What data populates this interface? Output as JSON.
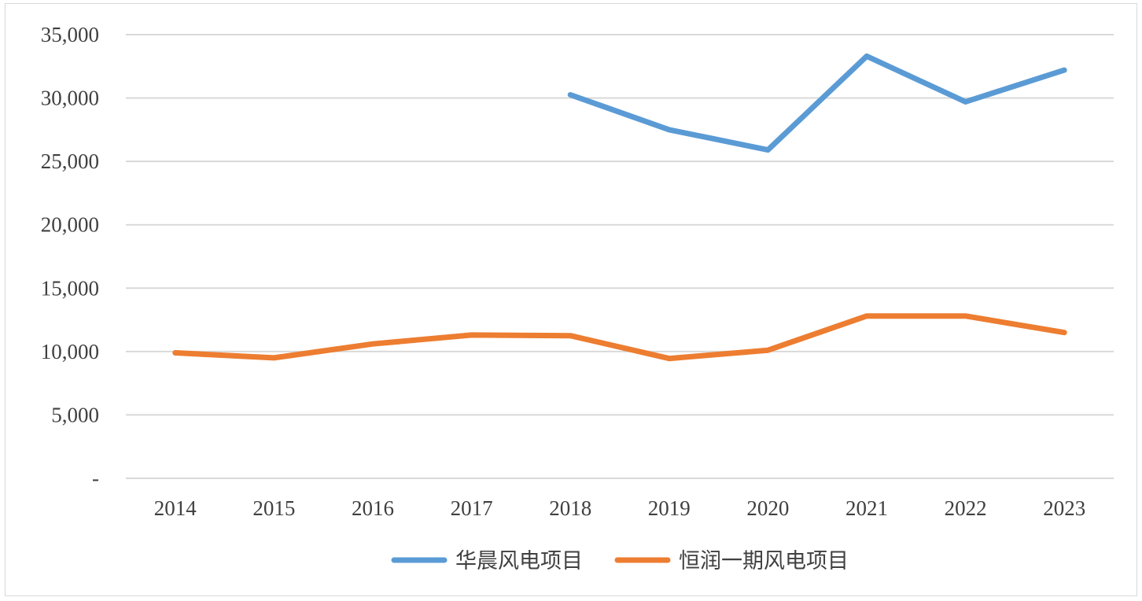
{
  "chart_data": {
    "type": "line",
    "categories": [
      "2014",
      "2015",
      "2016",
      "2017",
      "2018",
      "2019",
      "2020",
      "2021",
      "2022",
      "2023"
    ],
    "ylim": [
      0,
      35000
    ],
    "y_ticks": [
      0,
      5000,
      10000,
      15000,
      20000,
      25000,
      30000,
      35000
    ],
    "y_tick_labels": [
      "-",
      "5,000",
      "10,000",
      "15,000",
      "20,000",
      "25,000",
      "30,000",
      "35,000"
    ],
    "grid": true,
    "legend_position": "bottom",
    "series": [
      {
        "name": "华晨风电项目",
        "color": "#5b9bd5",
        "values": [
          null,
          null,
          null,
          null,
          30250,
          27500,
          25900,
          33300,
          29700,
          32200
        ]
      },
      {
        "name": "恒润一期风电项目",
        "color": "#ed7d31",
        "values": [
          9900,
          9500,
          10600,
          11300,
          11250,
          9450,
          10100,
          12800,
          12800,
          11500
        ]
      }
    ]
  }
}
